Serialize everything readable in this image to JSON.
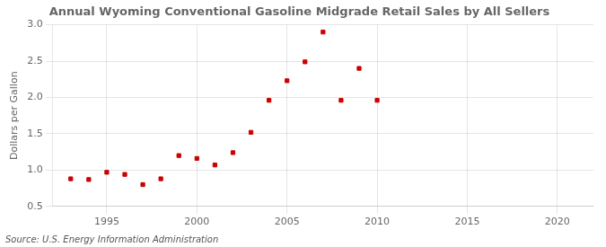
{
  "chart_data": {
    "type": "scatter",
    "title": "Annual Wyoming Conventional Gasoline Midgrade Retail Sales by All Sellers",
    "ylabel": "Dollars per Gallon",
    "annotation": "Source: U.S. Energy Information Administration",
    "x": [
      1993,
      1994,
      1995,
      1996,
      1997,
      1998,
      1999,
      2000,
      2001,
      2002,
      2003,
      2004,
      2005,
      2006,
      2007,
      2008,
      2009,
      2010
    ],
    "values": [
      0.88,
      0.87,
      0.97,
      0.94,
      0.8,
      0.88,
      1.2,
      1.16,
      1.07,
      1.24,
      1.52,
      1.96,
      2.23,
      2.49,
      2.9,
      1.96,
      2.4,
      1.96
    ],
    "color": "#cc0000",
    "marker": "square",
    "xlim": [
      1992,
      2022
    ],
    "xticks": [
      1995,
      2000,
      2005,
      2010,
      2015,
      2020
    ],
    "ylim": [
      0.5,
      3.0
    ],
    "yticks": [
      0.5,
      {
        "value": 1.0,
        "label": "1.0"
      },
      1.5,
      {
        "value": 2.0,
        "label": "2.0"
      },
      2.5,
      {
        "value": 3.0,
        "label": "3.0"
      }
    ],
    "grid": true,
    "legend": false
  }
}
